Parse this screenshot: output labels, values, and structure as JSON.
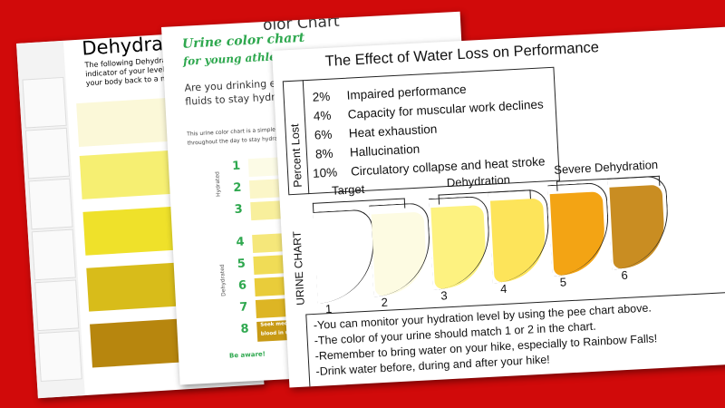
{
  "back_sheet": {
    "title": "Dehydratio",
    "lines": [
      "The following Dehydration U",
      "indicator of your level of de",
      "your body back to a normal"
    ]
  },
  "middle_sheet": {
    "heading_behind": "olor Chart",
    "title": "Urine color chart",
    "subtitle": "for young athle",
    "intro": [
      "Are you drinking e",
      "fluids to stay hydra"
    ],
    "body": [
      "This urine color chart is a simple tool",
      "throughout the day to stay hydrated."
    ],
    "scale_numbers": [
      "1",
      "2",
      "3",
      "4",
      "5",
      "6",
      "7",
      "8"
    ],
    "hydrated_label": "Hydrated",
    "dehydrated_label": "Dehydrated",
    "warning": [
      "Seek medical help. If",
      "blood in urine or if the"
    ],
    "aware": "Be aware!"
  },
  "front_sheet": {
    "title": "The Effect of Water Loss on Performance",
    "percent_label": "Percent Lost",
    "rows": [
      {
        "percent": "2%",
        "effect": "Impaired performance"
      },
      {
        "percent": "4%",
        "effect": "Capacity for muscular work declines"
      },
      {
        "percent": "6%",
        "effect": "Heat exhaustion"
      },
      {
        "percent": "8%",
        "effect": "Hallucination"
      },
      {
        "percent": "10%",
        "effect": "Circulatory collapse and heat stroke"
      }
    ],
    "groups": [
      "Target",
      "Dehydration",
      "Severe Dehydration"
    ],
    "chart_label": "URINE CHART",
    "cups": [
      "1",
      "2",
      "3",
      "4",
      "5",
      "6"
    ],
    "notes": [
      "-You can monitor your hydration level by using the pee chart above.",
      "-The color of your urine should match 1 or 2 in the chart.",
      "-Remember to bring water on your hike, especially to Rainbow Falls!",
      "-Drink water before, during and after your hike!"
    ]
  }
}
